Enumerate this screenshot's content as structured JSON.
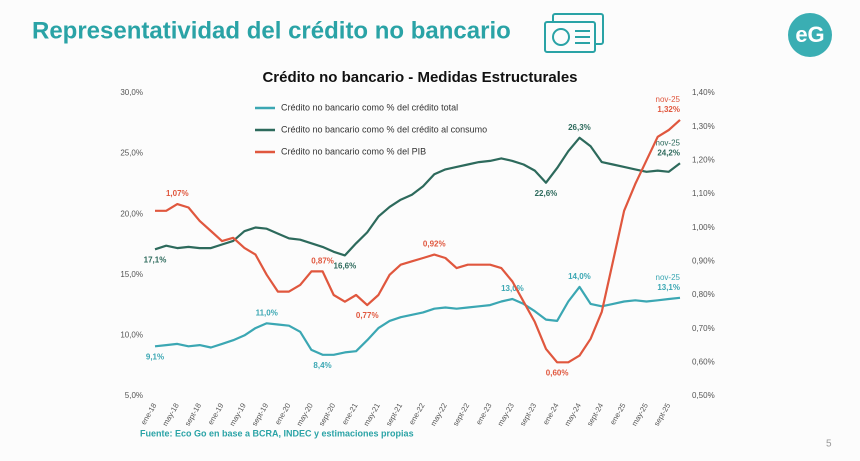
{
  "slide": {
    "title": "Representatividad del crédito no bancario",
    "logo": "eG",
    "page_number": "5"
  },
  "chart_data": {
    "type": "line",
    "title": "Crédito no bancario - Medidas Estructurales",
    "source": "Fuente: Eco Go en base a BCRA, INDEC y estimaciones propias",
    "categories": [
      "ene-18",
      null,
      "may-18",
      null,
      "sept-18",
      null,
      "ene-19",
      null,
      "may-19",
      null,
      "sept-19",
      null,
      "ene-20",
      null,
      "may-20",
      null,
      "sept-20",
      null,
      "ene-21",
      null,
      "may-21",
      null,
      "sept-21",
      null,
      "ene-22",
      null,
      "may-22",
      null,
      "sept-22",
      null,
      "ene-23",
      null,
      "may-23",
      null,
      "sept-23",
      null,
      "ene-24",
      null,
      "may-24",
      null,
      "sept-24",
      null,
      "ene-25",
      null,
      "may-25",
      null,
      "sept-25",
      null
    ],
    "ylim": [
      5,
      30
    ],
    "yticks": [
      {
        "value": 5,
        "label": "5,0%"
      },
      {
        "value": 10,
        "label": "10,0%"
      },
      {
        "value": 15,
        "label": "15,0%"
      },
      {
        "value": 20,
        "label": "20,0%"
      },
      {
        "value": 25,
        "label": "25,0%"
      },
      {
        "value": 30,
        "label": "30,0%"
      }
    ],
    "y2lim": [
      0.5,
      1.4
    ],
    "y2ticks": [
      {
        "value": 0.5,
        "label": "0,50%"
      },
      {
        "value": 0.6,
        "label": "0,60%"
      },
      {
        "value": 0.7,
        "label": "0,70%"
      },
      {
        "value": 0.8,
        "label": "0,80%"
      },
      {
        "value": 0.9,
        "label": "0,90%"
      },
      {
        "value": 1.0,
        "label": "1,00%"
      },
      {
        "value": 1.1,
        "label": "1,10%"
      },
      {
        "value": 1.2,
        "label": "1,20%"
      },
      {
        "value": 1.3,
        "label": "1,30%"
      },
      {
        "value": 1.4,
        "label": "1,40%"
      }
    ],
    "series": [
      {
        "name": "Crédito no bancario como % del crédito total",
        "color": "#3ba7b3",
        "values": [
          9.1,
          9.2,
          9.3,
          9.1,
          9.2,
          9.0,
          9.3,
          9.6,
          10.0,
          10.6,
          11.0,
          10.9,
          10.8,
          10.3,
          8.8,
          8.4,
          8.4,
          8.6,
          8.7,
          9.6,
          10.6,
          11.2,
          11.5,
          11.7,
          11.9,
          12.2,
          12.3,
          12.2,
          12.3,
          12.4,
          12.5,
          12.8,
          13.0,
          12.6,
          12.0,
          11.3,
          11.2,
          12.8,
          14.0,
          12.6,
          12.4,
          12.6,
          12.8,
          12.9,
          12.8,
          12.9,
          13.0,
          13.1
        ],
        "value_labels": [
          "9,1%",
          null,
          null,
          null,
          null,
          null,
          null,
          null,
          null,
          null,
          "11,0%",
          null,
          null,
          null,
          null,
          "8,4%",
          null,
          null,
          null,
          null,
          null,
          null,
          null,
          null,
          null,
          null,
          null,
          null,
          null,
          null,
          null,
          null,
          "13,0%",
          null,
          null,
          null,
          null,
          null,
          "14,0%",
          null,
          null,
          null,
          null,
          null,
          null,
          null,
          null,
          "13,1%"
        ]
      },
      {
        "name": "Crédito no bancario como % del crédito al consumo",
        "color": "#2d6a5c",
        "values": [
          17.1,
          17.4,
          17.2,
          17.3,
          17.2,
          17.2,
          17.5,
          17.8,
          18.6,
          18.9,
          18.8,
          18.4,
          18.0,
          17.9,
          17.6,
          17.3,
          16.9,
          16.6,
          17.6,
          18.5,
          19.8,
          20.6,
          21.2,
          21.6,
          22.3,
          23.3,
          23.7,
          23.9,
          24.1,
          24.3,
          24.4,
          24.6,
          24.4,
          24.1,
          23.6,
          22.6,
          23.8,
          25.2,
          26.3,
          25.6,
          24.3,
          24.1,
          23.9,
          23.7,
          23.5,
          23.6,
          23.5,
          24.2
        ],
        "value_labels": [
          "17,1%",
          null,
          null,
          null,
          null,
          null,
          null,
          null,
          null,
          null,
          null,
          null,
          null,
          null,
          null,
          null,
          null,
          "16,6%",
          null,
          null,
          null,
          null,
          null,
          null,
          null,
          null,
          null,
          null,
          null,
          null,
          null,
          null,
          null,
          null,
          null,
          "22,6%",
          null,
          null,
          "26,3%",
          null,
          null,
          null,
          null,
          null,
          null,
          null,
          null,
          "24,2%"
        ]
      },
      {
        "name": "Crédito no bancario como % del PIB",
        "color": "#e0573e",
        "axis": "y2",
        "values": [
          1.05,
          1.05,
          1.07,
          1.06,
          1.02,
          0.99,
          0.96,
          0.97,
          0.94,
          0.92,
          0.86,
          0.81,
          0.81,
          0.83,
          0.87,
          0.87,
          0.8,
          0.78,
          0.8,
          0.77,
          0.8,
          0.86,
          0.89,
          0.9,
          0.91,
          0.92,
          0.91,
          0.88,
          0.89,
          0.89,
          0.89,
          0.88,
          0.84,
          0.78,
          0.72,
          0.64,
          0.6,
          0.6,
          0.62,
          0.67,
          0.75,
          0.9,
          1.05,
          1.13,
          1.2,
          1.27,
          1.29,
          1.32
        ],
        "value_labels": [
          null,
          null,
          "1,07%",
          null,
          null,
          null,
          null,
          null,
          null,
          null,
          null,
          null,
          null,
          null,
          null,
          "0,87%",
          null,
          null,
          null,
          "0,77%",
          null,
          null,
          null,
          null,
          null,
          "0,92%",
          null,
          null,
          null,
          null,
          null,
          null,
          null,
          null,
          null,
          null,
          "0,60%",
          null,
          null,
          null,
          null,
          null,
          null,
          null,
          null,
          null,
          null,
          "1,32%"
        ]
      }
    ],
    "annotations": [
      "nov-25",
      "nov-25",
      "nov-25"
    ]
  }
}
